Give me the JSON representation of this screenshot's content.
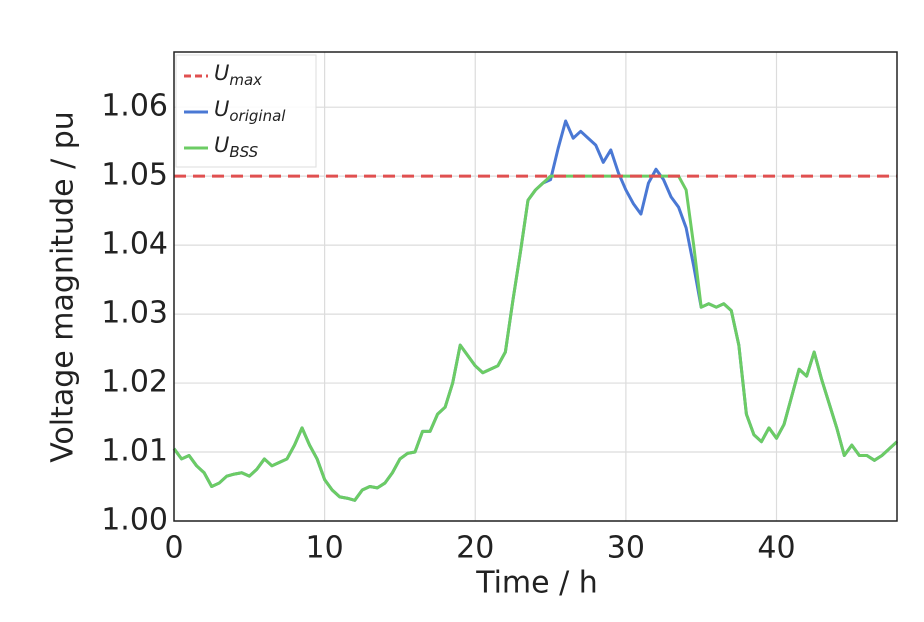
{
  "chart_data": {
    "type": "line",
    "xlabel": "Time / h",
    "ylabel": "Voltage magnitude / pu",
    "xlim": [
      0,
      48
    ],
    "ylim": [
      1.0,
      1.068
    ],
    "xticks": [
      0,
      10,
      20,
      30,
      40
    ],
    "yticks": [
      {
        "value": 1.0,
        "label": "1.00"
      },
      1.01,
      1.02,
      1.03,
      1.04,
      1.05,
      1.06
    ],
    "grid": true,
    "legend": "upper left",
    "series": [
      {
        "name": "U",
        "name_sub": "max",
        "color": "#e05050",
        "dash": true,
        "x": [
          0,
          48
        ],
        "values": [
          1.05,
          1.05
        ]
      },
      {
        "name": "U",
        "name_sub": "original",
        "color": "#4a78d4",
        "dash": false,
        "x": [
          0,
          0.5,
          1,
          1.5,
          2,
          2.5,
          3,
          3.5,
          4,
          4.5,
          5,
          5.5,
          6,
          6.5,
          7,
          7.5,
          8,
          8.5,
          9,
          9.5,
          10,
          10.5,
          11,
          11.5,
          12,
          12.5,
          13,
          13.5,
          14,
          14.5,
          15,
          15.5,
          16,
          16.5,
          17,
          17.5,
          18,
          18.5,
          19,
          19.5,
          20,
          20.5,
          21,
          21.5,
          22,
          22.5,
          23,
          23.5,
          24,
          24.5,
          25,
          25.5,
          26,
          26.5,
          27,
          27.5,
          28,
          28.5,
          29,
          29.5,
          30,
          30.5,
          31,
          31.5,
          32,
          32.5,
          33,
          33.5,
          34,
          34.5,
          35,
          35.5,
          36,
          36.5,
          37,
          37.5,
          38,
          38.5,
          39,
          39.5,
          40,
          40.5,
          41,
          41.5,
          42,
          42.5,
          43,
          43.5,
          44,
          44.5,
          45,
          45.5,
          46,
          46.5,
          47,
          47.5,
          48
        ],
        "values": [
          1.0105,
          1.009,
          1.0095,
          1.008,
          1.007,
          1.005,
          1.0055,
          1.0065,
          1.0068,
          1.007,
          1.0065,
          1.0075,
          1.009,
          1.008,
          1.0085,
          1.009,
          1.011,
          1.0135,
          1.011,
          1.009,
          1.006,
          1.0045,
          1.0035,
          1.0033,
          1.003,
          1.0045,
          1.005,
          1.0048,
          1.0055,
          1.007,
          1.009,
          1.0098,
          1.01,
          1.013,
          1.013,
          1.0155,
          1.0165,
          1.02,
          1.0255,
          1.024,
          1.0225,
          1.0215,
          1.022,
          1.0225,
          1.0245,
          1.032,
          1.039,
          1.0465,
          1.048,
          1.049,
          1.0495,
          1.054,
          1.058,
          1.0555,
          1.0565,
          1.0555,
          1.0545,
          1.052,
          1.0538,
          1.0505,
          1.048,
          1.046,
          1.0445,
          1.049,
          1.051,
          1.0495,
          1.047,
          1.0455,
          1.0425,
          1.037,
          1.031,
          1.0315,
          1.031,
          1.0315,
          1.0305,
          1.0255,
          1.0155,
          1.0125,
          1.0115,
          1.0135,
          1.012,
          1.014,
          1.018,
          1.022,
          1.021,
          1.0245,
          1.0205,
          1.017,
          1.0135,
          1.0095,
          1.011,
          1.0095,
          1.0095,
          1.0088,
          1.0095,
          1.0105,
          1.0115
        ]
      },
      {
        "name": "U",
        "name_sub": "BSS",
        "color": "#6ccc64",
        "dash": false,
        "x": [
          0,
          0.5,
          1,
          1.5,
          2,
          2.5,
          3,
          3.5,
          4,
          4.5,
          5,
          5.5,
          6,
          6.5,
          7,
          7.5,
          8,
          8.5,
          9,
          9.5,
          10,
          10.5,
          11,
          11.5,
          12,
          12.5,
          13,
          13.5,
          14,
          14.5,
          15,
          15.5,
          16,
          16.5,
          17,
          17.5,
          18,
          18.5,
          19,
          19.5,
          20,
          20.5,
          21,
          21.5,
          22,
          22.5,
          23,
          23.5,
          24,
          24.5,
          25,
          25.5,
          26,
          26.5,
          27,
          27.5,
          28,
          28.5,
          29,
          29.5,
          30,
          30.5,
          31,
          31.5,
          32,
          32.5,
          33,
          33.5,
          34,
          34.5,
          35,
          35.5,
          36,
          36.5,
          37,
          37.5,
          38,
          38.5,
          39,
          39.5,
          40,
          40.5,
          41,
          41.5,
          42,
          42.5,
          43,
          43.5,
          44,
          44.5,
          45,
          45.5,
          46,
          46.5,
          47,
          47.5,
          48
        ],
        "values": [
          1.0105,
          1.009,
          1.0095,
          1.008,
          1.007,
          1.005,
          1.0055,
          1.0065,
          1.0068,
          1.007,
          1.0065,
          1.0075,
          1.009,
          1.008,
          1.0085,
          1.009,
          1.011,
          1.0135,
          1.011,
          1.009,
          1.006,
          1.0045,
          1.0035,
          1.0033,
          1.003,
          1.0045,
          1.005,
          1.0048,
          1.0055,
          1.007,
          1.009,
          1.0098,
          1.01,
          1.013,
          1.013,
          1.0155,
          1.0165,
          1.02,
          1.0255,
          1.024,
          1.0225,
          1.0215,
          1.022,
          1.0225,
          1.0245,
          1.032,
          1.039,
          1.0465,
          1.048,
          1.049,
          1.05,
          1.05,
          1.05,
          1.05,
          1.05,
          1.05,
          1.05,
          1.05,
          1.05,
          1.05,
          1.05,
          1.05,
          1.05,
          1.05,
          1.05,
          1.05,
          1.05,
          1.05,
          1.048,
          1.04,
          1.031,
          1.0315,
          1.031,
          1.0315,
          1.0305,
          1.0255,
          1.0155,
          1.0125,
          1.0115,
          1.0135,
          1.012,
          1.014,
          1.018,
          1.022,
          1.021,
          1.0245,
          1.0205,
          1.017,
          1.0135,
          1.0095,
          1.011,
          1.0095,
          1.0095,
          1.0088,
          1.0095,
          1.0105,
          1.0115
        ]
      }
    ]
  }
}
